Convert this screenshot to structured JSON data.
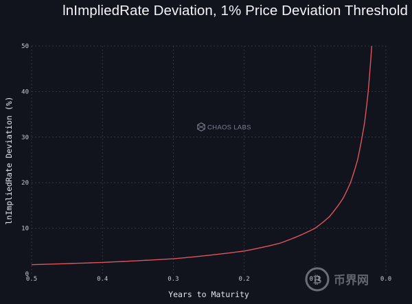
{
  "chart_data": {
    "type": "line",
    "title": "lnImpliedRate Deviation, 1% Price Deviation Threshold",
    "xlabel": "Years to Maturity",
    "ylabel": "lnImpliedRate Deviation (%)",
    "xlim": [
      0.5,
      0.0
    ],
    "ylim": [
      0,
      50
    ],
    "x_ticks": [
      "0.5",
      "0.4",
      "0.3",
      "0.2",
      "0.1",
      "0.0"
    ],
    "y_ticks": [
      "0",
      "10",
      "20",
      "30",
      "40",
      "50"
    ],
    "grid": true,
    "series": [
      {
        "name": "lnImpliedRate Deviation",
        "color": "#e2545c",
        "x": [
          0.5,
          0.4,
          0.3,
          0.2,
          0.15,
          0.1,
          0.08,
          0.06,
          0.05,
          0.04,
          0.03,
          0.025,
          0.02
        ],
        "y": [
          2.0,
          2.5,
          3.3,
          5.0,
          6.7,
          10.0,
          12.5,
          16.7,
          20.0,
          25.0,
          33.3,
          40.0,
          50.0
        ]
      }
    ]
  },
  "watermark": {
    "text": "CHAOS LABS",
    "icon": "chaos-labs-logo-icon"
  },
  "corner_watermark": {
    "text": "币界网",
    "icon": "bitcoin-icon"
  }
}
